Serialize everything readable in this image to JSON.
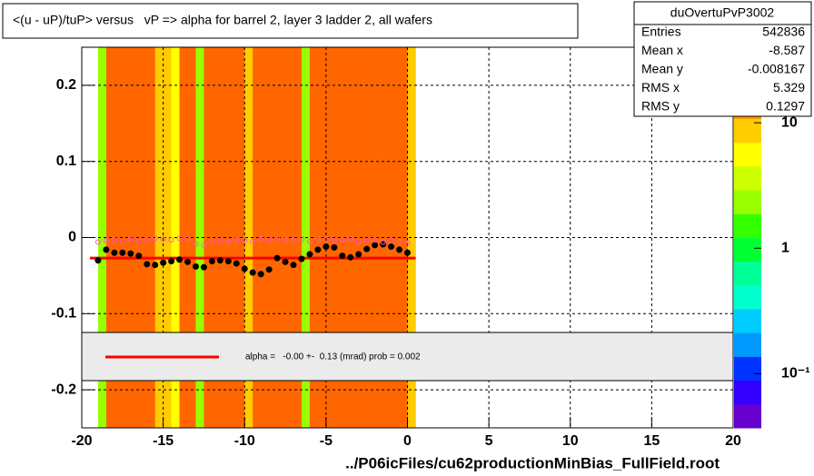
{
  "chart_data": {
    "type": "heatmap",
    "title": "<(u - uP)/tuP> versus   vP => alpha for barrel 2, layer 3 ladder 2, all wafers",
    "xlabel": "../P06icFiles/cu62productionMinBias_FullField.root",
    "xlim": [
      -20,
      20
    ],
    "xticks": [
      -20,
      -15,
      -10,
      -5,
      0,
      5,
      10,
      15,
      20
    ],
    "ylim": [
      -0.25,
      0.25
    ],
    "yticks": [
      -0.2,
      -0.1,
      0,
      0.1,
      0.2
    ],
    "grid": true,
    "log_z": true,
    "zlim": [
      0.037,
      40
    ],
    "zticks": [
      {
        "value": 10,
        "label": "10"
      },
      1,
      {
        "value": 0.1,
        "label": "10⁻¹"
      }
    ],
    "palette": [
      "#6600cc",
      "#3300ff",
      "#0033ff",
      "#0099ff",
      "#00ccff",
      "#00ffcc",
      "#00ff99",
      "#00ff33",
      "#33ff00",
      "#99ff00",
      "#ccff00",
      "#ffff00",
      "#ffcc00",
      "#ff9900",
      "#ff6600",
      "#ff3300"
    ],
    "heatmap": {
      "bins": [
        -19,
        -18.5,
        -18,
        -17.5,
        -17,
        -16.5,
        -16,
        -15.5,
        -15,
        -14.5,
        -14,
        -13.5,
        -13,
        -12.5,
        -12,
        -11.5,
        -11,
        -10.5,
        -10,
        -9.5,
        -9,
        -8.5,
        -8,
        -7.5,
        -7,
        -6.5,
        -6,
        -5.5,
        -5,
        -4.5,
        -4,
        -3.5,
        -3,
        -2.5,
        -2,
        -1.5,
        -1,
        -0.5,
        0,
        0.5
      ],
      "values": [
        2,
        25,
        25,
        22,
        25,
        25,
        22,
        8,
        8,
        6,
        20,
        25,
        2,
        20,
        25,
        25,
        22,
        25,
        8,
        20,
        25,
        25,
        22,
        25,
        25,
        2,
        20,
        25,
        25,
        22,
        25,
        25,
        22,
        25,
        25,
        20,
        25,
        25,
        10
      ]
    },
    "x": [
      -19,
      -18.5,
      -18,
      -17.5,
      -17,
      -16.5,
      -16,
      -15.5,
      -15,
      -14.5,
      -14,
      -13.5,
      -13,
      -12.5,
      -12,
      -11.5,
      -11,
      -10.5,
      -10,
      -9.5,
      -9,
      -8.5,
      -8,
      -7.5,
      -7,
      -6.5,
      -6,
      -5.5,
      -5,
      -4.5,
      -4,
      -3.5,
      -3,
      -2.5,
      -2,
      -1.5,
      -1,
      -0.5,
      0
    ],
    "series": [
      {
        "color": "#000000",
        "marker": "filled",
        "values": [
          -0.03,
          -0.016,
          -0.02,
          -0.02,
          -0.021,
          -0.024,
          -0.035,
          -0.036,
          -0.033,
          -0.031,
          -0.029,
          -0.032,
          -0.038,
          -0.039,
          -0.031,
          -0.03,
          -0.031,
          -0.034,
          -0.041,
          -0.046,
          -0.048,
          -0.042,
          -0.027,
          -0.032,
          -0.036,
          -0.028,
          -0.022,
          -0.016,
          -0.012,
          -0.013,
          -0.024,
          -0.026,
          -0.022,
          -0.015,
          -0.01,
          -0.009,
          -0.012,
          -0.016,
          -0.02
        ]
      },
      {
        "color": "#ff55cc",
        "marker": "open",
        "values": [
          -0.006,
          -0.004,
          -0.003,
          -0.005,
          -0.002,
          -0.004,
          -0.003,
          -0.001,
          -0.002,
          -0.003,
          -0.001,
          -0.002,
          -0.008,
          -0.01,
          -0.005,
          -0.004,
          -0.006,
          -0.003,
          -0.004,
          -0.005,
          -0.002,
          -0.004,
          -0.001,
          -0.003,
          -0.004,
          -0.002,
          -0.005,
          -0.003,
          -0.002,
          -0.004,
          -0.003,
          -0.002,
          -0.005,
          -0.004,
          -0.003,
          -0.006,
          -0.004,
          -0.005,
          -0.007
        ]
      }
    ],
    "fit": {
      "x": [
        -19.5,
        0.5
      ],
      "y": [
        -0.027,
        -0.027
      ],
      "color": "#ff0000",
      "label": "alpha =   -0.00 +-  0.13 (mrad) prob = 0.002"
    },
    "stats": {
      "name": "duOvertuPvP3002",
      "rows": [
        {
          "label": "Entries",
          "value": 542836
        },
        {
          "label": "Mean x",
          "value": -8.587
        },
        {
          "label": "Mean y",
          "value": -0.008167
        },
        {
          "label": "RMS x",
          "value": 5.329
        },
        {
          "label": "RMS y",
          "value": 0.1297
        }
      ]
    }
  }
}
